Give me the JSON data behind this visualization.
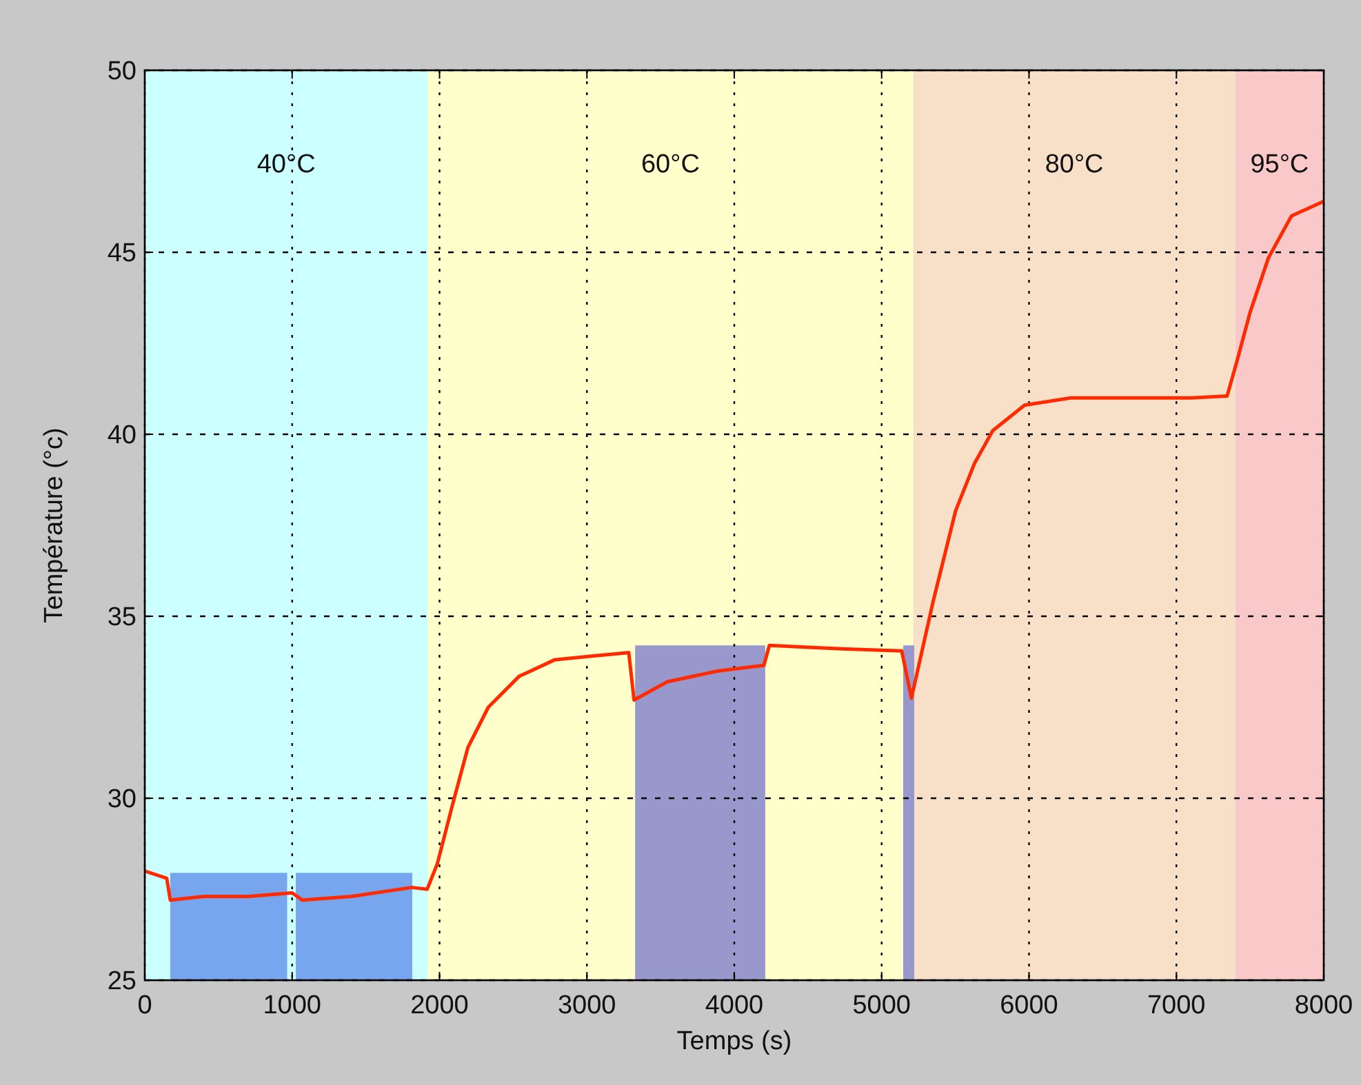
{
  "chart_data": {
    "type": "line",
    "xlabel": "Temps (s)",
    "ylabel": "Température (°c)",
    "xlim": [
      0,
      8000
    ],
    "xticks": [
      0,
      1000,
      2000,
      3000,
      4000,
      5000,
      6000,
      7000,
      8000
    ],
    "ylim": [
      25,
      50
    ],
    "yticks": [
      25,
      30,
      35,
      40,
      45,
      50
    ],
    "grid": true,
    "bands": [
      {
        "axis": "x",
        "from": 0,
        "to": 1920,
        "label": "40°C",
        "color": "#ccffff"
      },
      {
        "axis": "x",
        "from": 1920,
        "to": 5214,
        "label": "60°C",
        "color": "#ffffcc"
      },
      {
        "axis": "x",
        "from": 5214,
        "to": 7400,
        "label": "80°C",
        "color": "#f8e0c8"
      },
      {
        "axis": "x",
        "from": 7400,
        "to": 8000,
        "label": "95°C",
        "color": "#f9c8c8"
      }
    ],
    "series": [
      {
        "type": "area",
        "color": "#78a6ee",
        "x": [
          173,
          966
        ],
        "values": [
          27.95,
          27.95
        ]
      },
      {
        "type": "area",
        "color": "#78a6ee",
        "x": [
          1025,
          1815
        ],
        "values": [
          27.95,
          27.95
        ]
      },
      {
        "type": "area",
        "color": "#9898cc",
        "x": [
          3327,
          4210
        ],
        "values": [
          34.2,
          34.2
        ]
      },
      {
        "type": "area",
        "color": "#9898cc",
        "x": [
          5146,
          5221
        ],
        "values": [
          34.2,
          34.2
        ]
      },
      {
        "color": "#ff2a00",
        "x": [
          0,
          149,
          173,
          400,
          700,
          1000,
          1070,
          1400,
          1812,
          1916,
          1985,
          2090,
          2193,
          2331,
          2540,
          2779,
          3022,
          3284,
          3320,
          3546,
          3892,
          4201,
          4238,
          4500,
          4757,
          5136,
          5202,
          5349,
          5502,
          5630,
          5754,
          5970,
          6284,
          6752,
          7100,
          7344,
          7407,
          7500,
          7625,
          7781,
          8000
        ],
        "values": [
          28.0,
          27.8,
          27.2,
          27.3,
          27.3,
          27.4,
          27.2,
          27.3,
          27.55,
          27.5,
          28.2,
          29.85,
          31.4,
          32.5,
          33.35,
          33.8,
          33.9,
          34.0,
          32.7,
          33.2,
          33.5,
          33.65,
          34.2,
          34.15,
          34.1,
          34.05,
          32.75,
          35.4,
          37.9,
          39.2,
          40.1,
          40.8,
          41.0,
          41.0,
          41.0,
          41.05,
          41.95,
          43.35,
          44.85,
          46.0,
          46.4
        ]
      }
    ]
  }
}
